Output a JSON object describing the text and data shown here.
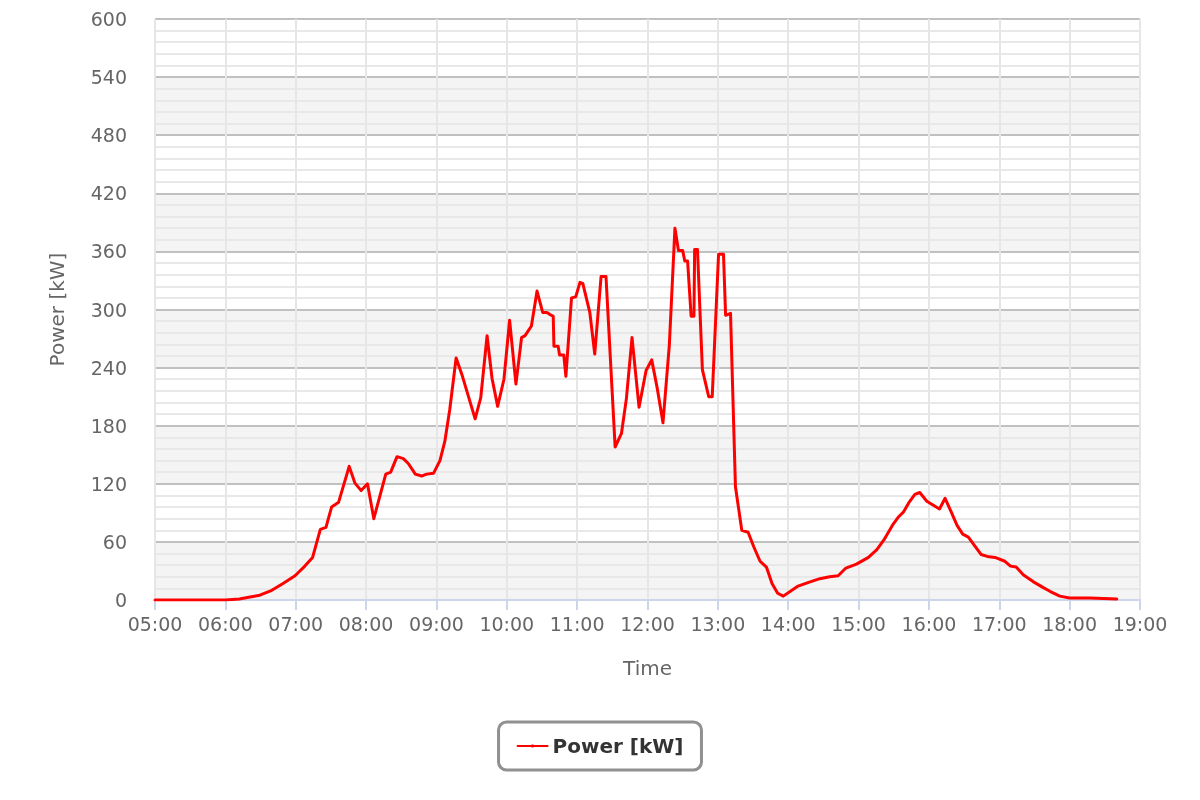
{
  "chart_data": {
    "type": "line",
    "xlabel": "Time",
    "ylabel": "Power [kW]",
    "x": [
      5.0,
      5.5,
      6.0,
      6.2,
      6.35,
      6.49,
      6.66,
      6.82,
      6.99,
      7.13,
      7.24,
      7.35,
      7.43,
      7.51,
      7.61,
      7.76,
      7.84,
      7.93,
      8.02,
      8.11,
      8.28,
      8.35,
      8.44,
      8.53,
      8.6,
      8.7,
      8.79,
      8.86,
      8.96,
      9.05,
      9.12,
      9.19,
      9.28,
      9.37,
      9.55,
      9.63,
      9.72,
      9.79,
      9.87,
      9.96,
      10.04,
      10.13,
      10.21,
      10.26,
      10.35,
      10.43,
      10.51,
      10.57,
      10.61,
      10.66,
      10.67,
      10.73,
      10.75,
      10.81,
      10.84,
      10.92,
      10.98,
      11.04,
      11.08,
      11.18,
      11.25,
      11.34,
      11.41,
      11.54,
      11.63,
      11.7,
      11.78,
      11.88,
      11.98,
      12.06,
      12.14,
      12.22,
      12.31,
      12.39,
      12.44,
      12.5,
      12.53,
      12.57,
      12.62,
      12.66,
      12.67,
      12.71,
      12.78,
      12.87,
      12.92,
      13.01,
      13.08,
      13.11,
      13.18,
      13.25,
      13.34,
      13.43,
      13.51,
      13.6,
      13.69,
      13.77,
      13.85,
      13.93,
      14.13,
      14.28,
      14.45,
      14.59,
      14.71,
      14.82,
      14.97,
      15.14,
      15.26,
      15.36,
      15.48,
      15.57,
      15.64,
      15.71,
      15.8,
      15.87,
      15.97,
      16.15,
      16.23,
      16.31,
      16.4,
      16.48,
      16.56,
      16.74,
      16.83,
      16.94,
      17.08,
      17.16,
      17.24,
      17.34,
      17.48,
      17.62,
      17.72,
      17.86,
      18.0,
      18.29,
      18.67
    ],
    "series": [
      {
        "name": "Power [kW]",
        "color": "#ff0000",
        "values": [
          0,
          0,
          0,
          1,
          3,
          5,
          10,
          17,
          25,
          35,
          44,
          73,
          75,
          96,
          101,
          138,
          121,
          113,
          120,
          84,
          130,
          132,
          148,
          146,
          141,
          130,
          128,
          130,
          131,
          144,
          164,
          197,
          250,
          231,
          187,
          209,
          273,
          229,
          200,
          228,
          289,
          223,
          271,
          273,
          283,
          319,
          297,
          297,
          295,
          293,
          262,
          262,
          253,
          253,
          231,
          312,
          313,
          328,
          327,
          297,
          254,
          334,
          334,
          158,
          172,
          208,
          271,
          199,
          237,
          248,
          218,
          183,
          263,
          384,
          361,
          361,
          350,
          350,
          293,
          293,
          362,
          362,
          238,
          210,
          210,
          357,
          357,
          294,
          296,
          117,
          72,
          70,
          55,
          40,
          34,
          17,
          7,
          4,
          14,
          18,
          22,
          24,
          25,
          33,
          37,
          44,
          52,
          62,
          77,
          86,
          91,
          100,
          109,
          111,
          102,
          94,
          105,
          92,
          77,
          68,
          65,
          47,
          45,
          44,
          40,
          35,
          34,
          26,
          19,
          13,
          9,
          4,
          2,
          2,
          1
        ]
      }
    ],
    "xlim": [
      5,
      19
    ],
    "xticks": [
      {
        "value": 5,
        "label": "05:00"
      },
      {
        "value": 6,
        "label": "06:00"
      },
      {
        "value": 7,
        "label": "07:00"
      },
      {
        "value": 8,
        "label": "08:00"
      },
      {
        "value": 9,
        "label": "09:00"
      },
      {
        "value": 10,
        "label": "10:00"
      },
      {
        "value": 11,
        "label": "11:00"
      },
      {
        "value": 12,
        "label": "12:00"
      },
      {
        "value": 13,
        "label": "13:00"
      },
      {
        "value": 14,
        "label": "14:00"
      },
      {
        "value": 15,
        "label": "15:00"
      },
      {
        "value": 16,
        "label": "16:00"
      },
      {
        "value": 17,
        "label": "17:00"
      },
      {
        "value": 18,
        "label": "18:00"
      },
      {
        "value": 19,
        "label": "19:00"
      }
    ],
    "ylim": [
      0,
      600
    ],
    "yticks": [
      0,
      60,
      120,
      180,
      240,
      300,
      360,
      420,
      480,
      540,
      600
    ],
    "grid": true,
    "legend": "bottom",
    "marker": "none",
    "line_style": "solid"
  }
}
